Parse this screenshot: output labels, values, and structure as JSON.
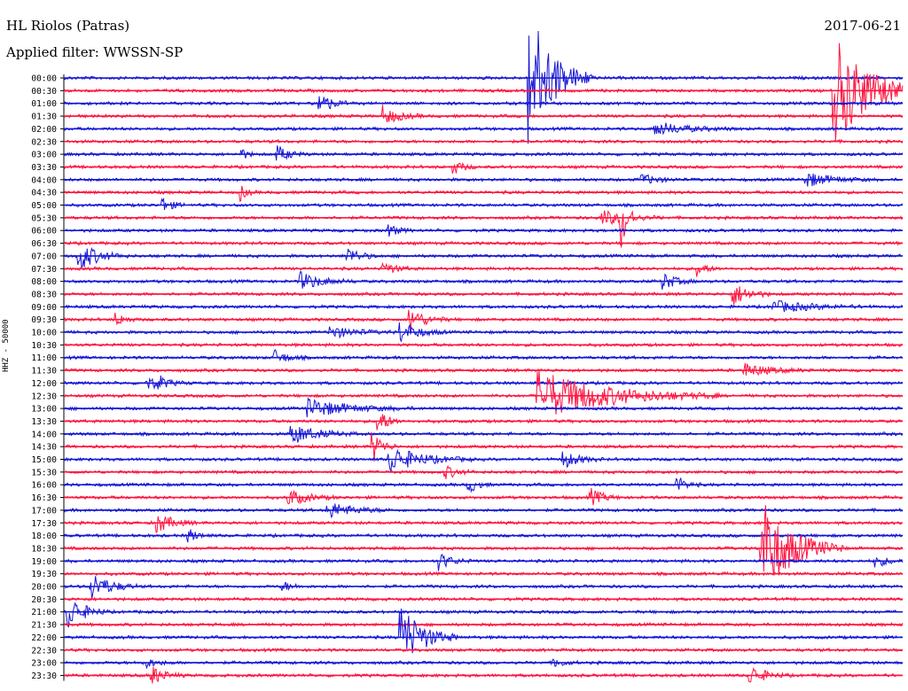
{
  "header": {
    "station": "HL Riolos (Patras)",
    "date": "2017-06-21",
    "filter": "Applied filter: WWSSN-SP"
  },
  "colors": {
    "trace_a": "#1616d6",
    "trace_b": "#ff1540"
  },
  "chart_data": {
    "type": "line",
    "subtype": "helicorder",
    "ylabel": "HHZ - 50000",
    "row_labels": [
      "00:00",
      "00:30",
      "01:00",
      "01:30",
      "02:00",
      "02:30",
      "03:00",
      "03:30",
      "04:00",
      "04:30",
      "05:00",
      "05:30",
      "06:00",
      "06:30",
      "07:00",
      "07:30",
      "08:00",
      "08:30",
      "09:00",
      "09:30",
      "10:00",
      "10:30",
      "11:00",
      "11:30",
      "12:00",
      "12:30",
      "13:00",
      "13:30",
      "14:00",
      "14:30",
      "15:00",
      "15:30",
      "16:00",
      "16:30",
      "17:00",
      "17:30",
      "18:00",
      "18:30",
      "19:00",
      "19:30",
      "20:00",
      "20:30",
      "21:00",
      "21:30",
      "22:00",
      "22:30",
      "23:00",
      "23:30"
    ],
    "color_cycle": [
      "blue",
      "red"
    ],
    "minutes_per_row": 30,
    "events": [
      {
        "row": 0,
        "minute": 16.6,
        "amp": 82,
        "dur": 0.8
      },
      {
        "row": 1,
        "minute": 27.5,
        "amp": 64,
        "dur": 1.2
      },
      {
        "row": 2,
        "minute": 9.1,
        "amp": 14,
        "dur": 0.4
      },
      {
        "row": 3,
        "minute": 11.4,
        "amp": 11,
        "dur": 0.5
      },
      {
        "row": 4,
        "minute": 21.1,
        "amp": 8,
        "dur": 1.0
      },
      {
        "row": 6,
        "minute": 7.6,
        "amp": 10,
        "dur": 0.4
      },
      {
        "row": 6,
        "minute": 6.3,
        "amp": 8,
        "dur": 0.2
      },
      {
        "row": 7,
        "minute": 13.9,
        "amp": 9,
        "dur": 0.3
      },
      {
        "row": 8,
        "minute": 26.5,
        "amp": 9,
        "dur": 0.8
      },
      {
        "row": 8,
        "minute": 20.6,
        "amp": 7,
        "dur": 0.5
      },
      {
        "row": 9,
        "minute": 6.3,
        "amp": 10,
        "dur": 0.2
      },
      {
        "row": 10,
        "minute": 3.5,
        "amp": 9,
        "dur": 0.3
      },
      {
        "row": 11,
        "minute": 19.2,
        "amp": 9,
        "dur": 0.8
      },
      {
        "row": 11,
        "minute": 19.9,
        "amp": 40,
        "dur": 0.2
      },
      {
        "row": 12,
        "minute": 11.6,
        "amp": 8,
        "dur": 0.3
      },
      {
        "row": 14,
        "minute": 0.5,
        "amp": 18,
        "dur": 0.6
      },
      {
        "row": 14,
        "minute": 10.1,
        "amp": 11,
        "dur": 0.4
      },
      {
        "row": 15,
        "minute": 11.4,
        "amp": 8,
        "dur": 0.4
      },
      {
        "row": 15,
        "minute": 22.6,
        "amp": 10,
        "dur": 0.3
      },
      {
        "row": 16,
        "minute": 8.4,
        "amp": 11,
        "dur": 0.7
      },
      {
        "row": 16,
        "minute": 21.4,
        "amp": 11,
        "dur": 0.4
      },
      {
        "row": 17,
        "minute": 23.9,
        "amp": 14,
        "dur": 0.5
      },
      {
        "row": 18,
        "minute": 25.3,
        "amp": 7,
        "dur": 1.2
      },
      {
        "row": 19,
        "minute": 12.3,
        "amp": 15,
        "dur": 0.5
      },
      {
        "row": 19,
        "minute": 1.8,
        "amp": 9,
        "dur": 0.3
      },
      {
        "row": 20,
        "minute": 12.0,
        "amp": 12,
        "dur": 0.6
      },
      {
        "row": 20,
        "minute": 9.5,
        "amp": 7,
        "dur": 0.8
      },
      {
        "row": 22,
        "minute": 7.5,
        "amp": 9,
        "dur": 0.4
      },
      {
        "row": 23,
        "minute": 24.3,
        "amp": 8,
        "dur": 0.8
      },
      {
        "row": 24,
        "minute": 2.9,
        "amp": 7,
        "dur": 0.6
      },
      {
        "row": 24,
        "minute": 3.3,
        "amp": 10,
        "dur": 0.2
      },
      {
        "row": 25,
        "minute": 16.9,
        "amp": 30,
        "dur": 2.2
      },
      {
        "row": 26,
        "minute": 8.7,
        "amp": 11,
        "dur": 1.3
      },
      {
        "row": 27,
        "minute": 11.2,
        "amp": 18,
        "dur": 0.3
      },
      {
        "row": 28,
        "minute": 8.1,
        "amp": 12,
        "dur": 0.8
      },
      {
        "row": 29,
        "minute": 11.0,
        "amp": 22,
        "dur": 0.3
      },
      {
        "row": 30,
        "minute": 11.6,
        "amp": 16,
        "dur": 1.0
      },
      {
        "row": 30,
        "minute": 17.8,
        "amp": 11,
        "dur": 0.5
      },
      {
        "row": 31,
        "minute": 13.6,
        "amp": 8,
        "dur": 0.4
      },
      {
        "row": 32,
        "minute": 14.4,
        "amp": 12,
        "dur": 0.3
      },
      {
        "row": 32,
        "minute": 21.9,
        "amp": 10,
        "dur": 0.3
      },
      {
        "row": 33,
        "minute": 8.0,
        "amp": 10,
        "dur": 0.6
      },
      {
        "row": 33,
        "minute": 18.8,
        "amp": 11,
        "dur": 0.4
      },
      {
        "row": 34,
        "minute": 9.4,
        "amp": 10,
        "dur": 0.8
      },
      {
        "row": 35,
        "minute": 3.3,
        "amp": 12,
        "dur": 0.5
      },
      {
        "row": 36,
        "minute": 4.4,
        "amp": 9,
        "dur": 0.3
      },
      {
        "row": 37,
        "minute": 24.9,
        "amp": 60,
        "dur": 1.0
      },
      {
        "row": 38,
        "minute": 13.4,
        "amp": 10,
        "dur": 0.4
      },
      {
        "row": 38,
        "minute": 29.0,
        "amp": 7,
        "dur": 0.4
      },
      {
        "row": 40,
        "minute": 0.9,
        "amp": 18,
        "dur": 0.6
      },
      {
        "row": 40,
        "minute": 7.8,
        "amp": 6,
        "dur": 0.3
      },
      {
        "row": 42,
        "minute": 0.1,
        "amp": 22,
        "dur": 0.5
      },
      {
        "row": 44,
        "minute": 12.0,
        "amp": 40,
        "dur": 0.7
      },
      {
        "row": 46,
        "minute": 2.8,
        "amp": 7,
        "dur": 0.4
      },
      {
        "row": 46,
        "minute": 17.5,
        "amp": 6,
        "dur": 0.3
      },
      {
        "row": 47,
        "minute": 3.1,
        "amp": 12,
        "dur": 0.4
      },
      {
        "row": 47,
        "minute": 24.5,
        "amp": 12,
        "dur": 0.5
      }
    ]
  }
}
